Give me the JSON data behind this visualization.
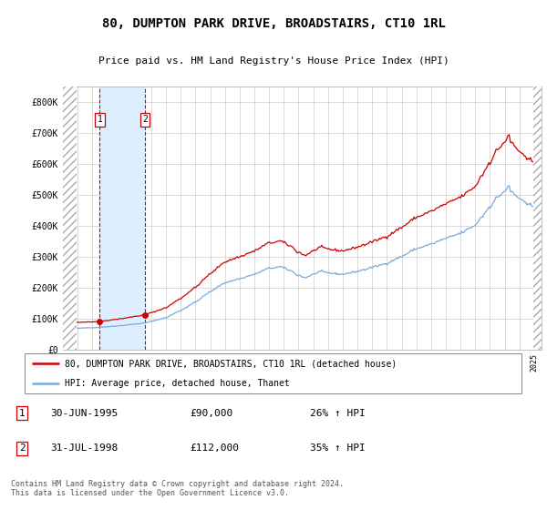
{
  "title": "80, DUMPTON PARK DRIVE, BROADSTAIRS, CT10 1RL",
  "subtitle": "Price paid vs. HM Land Registry's House Price Index (HPI)",
  "sale1_year": 1995.496,
  "sale1_price": 90000,
  "sale1_label": "1",
  "sale1_date_str": "30-JUN-1995",
  "sale1_price_str": "£90,000",
  "sale1_pct": "26% ↑ HPI",
  "sale2_year": 1998.579,
  "sale2_price": 112000,
  "sale2_label": "2",
  "sale2_date_str": "31-JUL-1998",
  "sale2_price_str": "£112,000",
  "sale2_pct": "35% ↑ HPI",
  "legend_line1": "80, DUMPTON PARK DRIVE, BROADSTAIRS, CT10 1RL (detached house)",
  "legend_line2": "HPI: Average price, detached house, Thanet",
  "footer": "Contains HM Land Registry data © Crown copyright and database right 2024.\nThis data is licensed under the Open Government Licence v3.0.",
  "red_color": "#cc0000",
  "blue_color": "#7aaadd",
  "grid_color": "#cccccc",
  "bg_color": "#ffffff",
  "sale_bg_color": "#ddeeff",
  "ylim_max": 850000,
  "xmin": 1993.0,
  "xmax": 2025.5,
  "hatch_left_end": 1993.9,
  "hatch_right_start": 2024.95,
  "yticks": [
    0,
    100000,
    200000,
    300000,
    400000,
    500000,
    600000,
    700000,
    800000
  ],
  "ytick_labels": [
    "£0",
    "£100K",
    "£200K",
    "£300K",
    "£400K",
    "£500K",
    "£600K",
    "£700K",
    "£800K"
  ]
}
